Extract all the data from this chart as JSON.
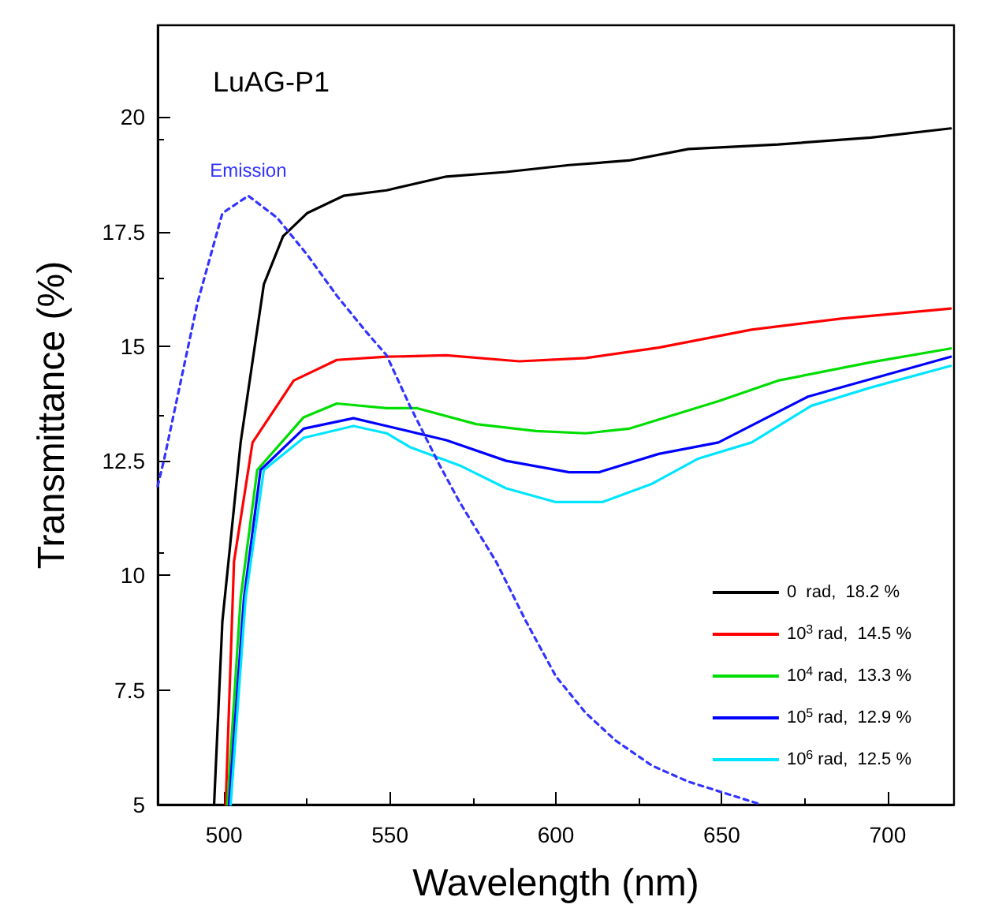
{
  "chart_data": {
    "type": "line",
    "title": "LuAG-P1",
    "xlabel": "Wavelength (nm)",
    "ylabel": "Transmittance (%)",
    "xlim": [
      480,
      720
    ],
    "xticks": [
      500,
      550,
      600,
      650,
      700
    ],
    "annotations": [
      "Emission"
    ],
    "ylim": [
      5,
      22
    ],
    "yticks": [
      5,
      7.5,
      10,
      12.5,
      15,
      17.5,
      20
    ],
    "grid": false,
    "legend": "bottom right",
    "marker": "none",
    "series": [
      {
        "name": "0  rad,  18.2 %",
        "color": "#000000",
        "x": [
          497,
          499.5,
          505,
          512,
          517.8,
          525,
          536,
          549,
          567,
          585,
          604,
          622,
          640,
          667,
          695,
          719
        ],
        "values": [
          5,
          9.0,
          12.9,
          16.35,
          17.4,
          17.9,
          18.28,
          18.4,
          18.7,
          18.8,
          18.95,
          19.05,
          19.3,
          19.4,
          19.55,
          19.75
        ]
      },
      {
        "name": "10$^{3}$ rad,  14.5 %",
        "color": "#ff0000",
        "x": [
          500.5,
          503,
          508.6,
          521,
          534,
          549,
          567,
          589,
          609,
          631,
          659,
          686,
          719
        ],
        "values": [
          5,
          10.3,
          12.9,
          14.25,
          14.7,
          14.77,
          14.8,
          14.67,
          14.74,
          14.97,
          15.36,
          15.6,
          15.82
        ]
      },
      {
        "name": "10$^{4}$ rad,  13.3 %",
        "color": "#00dd00",
        "x": [
          501,
          505,
          510,
          524,
          534,
          549,
          558,
          576,
          594,
          609,
          622,
          649,
          667,
          695,
          719
        ],
        "values": [
          5,
          9.5,
          12.3,
          13.45,
          13.75,
          13.65,
          13.65,
          13.3,
          13.15,
          13.1,
          13.2,
          13.8,
          14.25,
          14.65,
          14.95
        ]
      },
      {
        "name": "10$^{5}$ rad,  12.9 %",
        "color": "#0000ff",
        "x": [
          501.5,
          506,
          511,
          524,
          539,
          549,
          567,
          585,
          604,
          613,
          631,
          649,
          676,
          719
        ],
        "values": [
          5,
          9.5,
          12.3,
          13.2,
          13.43,
          13.26,
          12.95,
          12.5,
          12.25,
          12.25,
          12.65,
          12.9,
          13.9,
          14.77
        ]
      },
      {
        "name": "10$^{6}$ rad,  12.5 %",
        "color": "#00e5ff",
        "x": [
          502,
          506.5,
          512,
          524,
          539,
          549,
          556,
          571,
          585,
          600,
          614,
          629,
          643,
          659,
          677,
          695,
          719
        ],
        "values": [
          5,
          9.5,
          12.3,
          13.0,
          13.26,
          13.1,
          12.8,
          12.4,
          11.9,
          11.6,
          11.6,
          12.0,
          12.55,
          12.9,
          13.7,
          14.1,
          14.57
        ]
      },
      {
        "line_style": "dashed",
        "color": "#3333ff",
        "x": [
          480,
          482,
          492,
          499.5,
          507.3,
          516,
          525,
          534,
          543,
          549,
          556,
          565,
          571,
          582,
          591,
          600,
          609,
          618,
          629,
          640,
          651,
          662
        ],
        "values": [
          11.95,
          12.55,
          15.95,
          17.9,
          18.28,
          17.8,
          17.0,
          16.1,
          15.3,
          14.8,
          13.7,
          12.4,
          11.6,
          10.3,
          9.0,
          7.8,
          7.0,
          6.4,
          5.85,
          5.5,
          5.25,
          5.0
        ]
      }
    ]
  }
}
